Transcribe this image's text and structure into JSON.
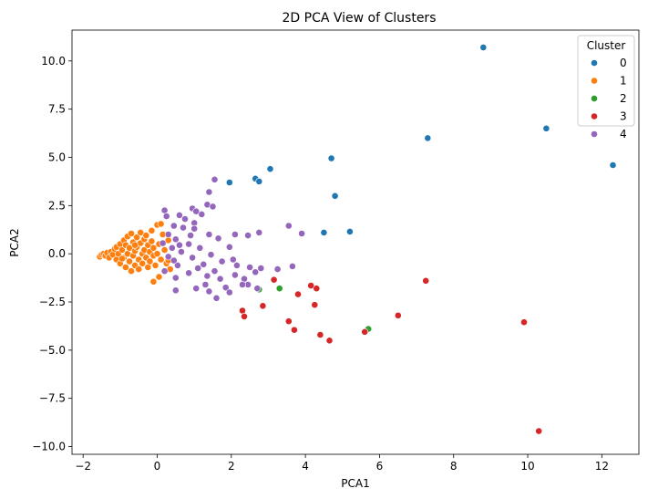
{
  "chart_data": {
    "type": "scatter",
    "title": "2D PCA View of Clusters",
    "xlabel": "PCA1",
    "ylabel": "PCA2",
    "xlim": [
      -2.3,
      13.0
    ],
    "ylim": [
      -10.4,
      11.6
    ],
    "xticks": [
      -2,
      0,
      2,
      4,
      6,
      8,
      10,
      12
    ],
    "yticks": [
      -10.0,
      -7.5,
      -5.0,
      -2.5,
      0.0,
      2.5,
      5.0,
      7.5,
      10.0
    ],
    "xtick_labels": [
      "−2",
      "0",
      "2",
      "4",
      "6",
      "8",
      "10",
      "12"
    ],
    "ytick_labels": [
      "−10.0",
      "−7.5",
      "−5.0",
      "−2.5",
      "0.0",
      "2.5",
      "5.0",
      "7.5",
      "10.0"
    ],
    "grid": false,
    "legend": {
      "title": "Cluster",
      "placement": "upper-right"
    },
    "series": [
      {
        "name": "0",
        "color": "#1f77b4",
        "points": [
          [
            8.8,
            10.7
          ],
          [
            10.5,
            6.5
          ],
          [
            12.3,
            4.6
          ],
          [
            7.3,
            6.0
          ],
          [
            4.7,
            4.95
          ],
          [
            4.8,
            3.0
          ],
          [
            3.05,
            4.4
          ],
          [
            2.65,
            3.9
          ],
          [
            2.75,
            3.75
          ],
          [
            1.95,
            3.7
          ],
          [
            5.2,
            1.15
          ],
          [
            4.5,
            1.1
          ]
        ]
      },
      {
        "name": "1",
        "color": "#ff7f0e",
        "points": [
          [
            -1.55,
            -0.15
          ],
          [
            -1.5,
            -0.05
          ],
          [
            -1.45,
            0.0
          ],
          [
            -1.4,
            -0.1
          ],
          [
            -1.35,
            0.05
          ],
          [
            -1.3,
            -0.2
          ],
          [
            -1.25,
            0.1
          ],
          [
            -1.2,
            -0.05
          ],
          [
            -1.15,
            0.25
          ],
          [
            -1.1,
            -0.3
          ],
          [
            -1.1,
            0.35
          ],
          [
            -1.05,
            0.0
          ],
          [
            -1.0,
            -0.5
          ],
          [
            -1.0,
            0.5
          ],
          [
            -0.95,
            0.2
          ],
          [
            -0.9,
            -0.2
          ],
          [
            -0.9,
            0.7
          ],
          [
            -0.85,
            -0.7
          ],
          [
            -0.85,
            0.45
          ],
          [
            -0.8,
            0.0
          ],
          [
            -0.8,
            0.9
          ],
          [
            -0.75,
            -0.4
          ],
          [
            -0.75,
            0.3
          ],
          [
            -0.7,
            -0.9
          ],
          [
            -0.7,
            1.05
          ],
          [
            -0.65,
            0.6
          ],
          [
            -0.65,
            -0.1
          ],
          [
            -0.6,
            0.15
          ],
          [
            -0.6,
            -0.6
          ],
          [
            -0.55,
            0.85
          ],
          [
            -0.55,
            0.35
          ],
          [
            -0.5,
            -0.3
          ],
          [
            -0.5,
            -0.8
          ],
          [
            -0.45,
            1.1
          ],
          [
            -0.45,
            0.55
          ],
          [
            -0.4,
            0.0
          ],
          [
            -0.4,
            -0.5
          ],
          [
            -0.35,
            0.75
          ],
          [
            -0.35,
            0.2
          ],
          [
            -0.3,
            -0.2
          ],
          [
            -0.3,
            0.95
          ],
          [
            -0.25,
            -0.7
          ],
          [
            -0.25,
            0.45
          ],
          [
            -0.2,
            0.1
          ],
          [
            -0.2,
            -0.4
          ],
          [
            -0.15,
            1.2
          ],
          [
            -0.15,
            0.65
          ],
          [
            -0.1,
            -0.1
          ],
          [
            -0.1,
            0.3
          ],
          [
            -0.05,
            -0.6
          ],
          [
            0.0,
            1.5
          ],
          [
            0.0,
            0.0
          ],
          [
            0.05,
            0.5
          ],
          [
            0.1,
            -0.3
          ],
          [
            0.15,
            1.0
          ],
          [
            0.2,
            0.2
          ],
          [
            0.25,
            -0.5
          ],
          [
            0.3,
            0.7
          ],
          [
            0.35,
            -0.8
          ],
          [
            0.1,
            1.55
          ],
          [
            -0.1,
            -1.45
          ],
          [
            0.05,
            -1.2
          ],
          [
            0.3,
            -0.35
          ],
          [
            -0.6,
            0.45
          ],
          [
            -0.95,
            -0.25
          ]
        ]
      },
      {
        "name": "2",
        "color": "#2ca02c",
        "points": [
          [
            2.75,
            -1.85
          ],
          [
            3.3,
            -1.8
          ],
          [
            5.7,
            -3.9
          ]
        ]
      },
      {
        "name": "3",
        "color": "#d62728",
        "points": [
          [
            10.3,
            -9.2
          ],
          [
            9.9,
            -3.55
          ],
          [
            7.25,
            -1.4
          ],
          [
            6.5,
            -3.2
          ],
          [
            5.6,
            -4.05
          ],
          [
            4.65,
            -4.5
          ],
          [
            4.4,
            -4.2
          ],
          [
            3.7,
            -3.95
          ],
          [
            3.55,
            -3.5
          ],
          [
            2.85,
            -2.7
          ],
          [
            2.3,
            -2.95
          ],
          [
            2.35,
            -3.25
          ],
          [
            3.15,
            -1.35
          ],
          [
            3.8,
            -2.1
          ],
          [
            4.15,
            -1.65
          ],
          [
            4.3,
            -1.8
          ],
          [
            4.25,
            -2.65
          ]
        ]
      },
      {
        "name": "4",
        "color": "#9467bd",
        "points": [
          [
            1.55,
            3.85
          ],
          [
            1.4,
            3.2
          ],
          [
            1.35,
            2.55
          ],
          [
            1.5,
            2.45
          ],
          [
            1.2,
            2.05
          ],
          [
            0.95,
            2.35
          ],
          [
            1.05,
            2.2
          ],
          [
            0.75,
            1.8
          ],
          [
            0.6,
            2.0
          ],
          [
            0.2,
            2.25
          ],
          [
            0.25,
            1.95
          ],
          [
            0.45,
            1.45
          ],
          [
            0.7,
            1.35
          ],
          [
            1.0,
            1.6
          ],
          [
            1.4,
            1.0
          ],
          [
            1.65,
            0.8
          ],
          [
            0.3,
            1.0
          ],
          [
            0.5,
            0.75
          ],
          [
            0.85,
            0.5
          ],
          [
            1.15,
            0.3
          ],
          [
            1.45,
            -0.05
          ],
          [
            0.4,
            0.3
          ],
          [
            0.65,
            0.1
          ],
          [
            0.95,
            -0.2
          ],
          [
            1.25,
            -0.55
          ],
          [
            1.55,
            -0.9
          ],
          [
            0.55,
            -0.6
          ],
          [
            0.85,
            -1.0
          ],
          [
            1.35,
            -1.15
          ],
          [
            1.7,
            -1.3
          ],
          [
            0.5,
            -1.25
          ],
          [
            1.3,
            -1.6
          ],
          [
            0.5,
            -1.9
          ],
          [
            1.05,
            -1.8
          ],
          [
            1.6,
            -2.3
          ],
          [
            1.4,
            -1.95
          ],
          [
            1.85,
            -1.75
          ],
          [
            2.1,
            -1.1
          ],
          [
            2.35,
            -1.3
          ],
          [
            2.45,
            -1.6
          ],
          [
            2.15,
            -0.6
          ],
          [
            2.05,
            -0.3
          ],
          [
            2.5,
            -0.7
          ],
          [
            2.8,
            -0.75
          ],
          [
            3.25,
            -0.8
          ],
          [
            3.65,
            -0.65
          ],
          [
            2.65,
            -0.95
          ],
          [
            1.95,
            0.35
          ],
          [
            2.1,
            1.0
          ],
          [
            2.45,
            0.95
          ],
          [
            2.75,
            1.1
          ],
          [
            3.55,
            1.45
          ],
          [
            3.9,
            1.05
          ],
          [
            2.3,
            -1.6
          ],
          [
            2.7,
            -1.8
          ],
          [
            1.95,
            -2.0
          ],
          [
            0.2,
            -0.9
          ],
          [
            0.3,
            -0.15
          ],
          [
            1.1,
            -0.75
          ],
          [
            1.75,
            -0.4
          ],
          [
            0.9,
            0.95
          ],
          [
            0.6,
            0.45
          ],
          [
            0.15,
            0.55
          ],
          [
            0.45,
            -0.35
          ],
          [
            1.0,
            1.3
          ]
        ]
      }
    ]
  }
}
